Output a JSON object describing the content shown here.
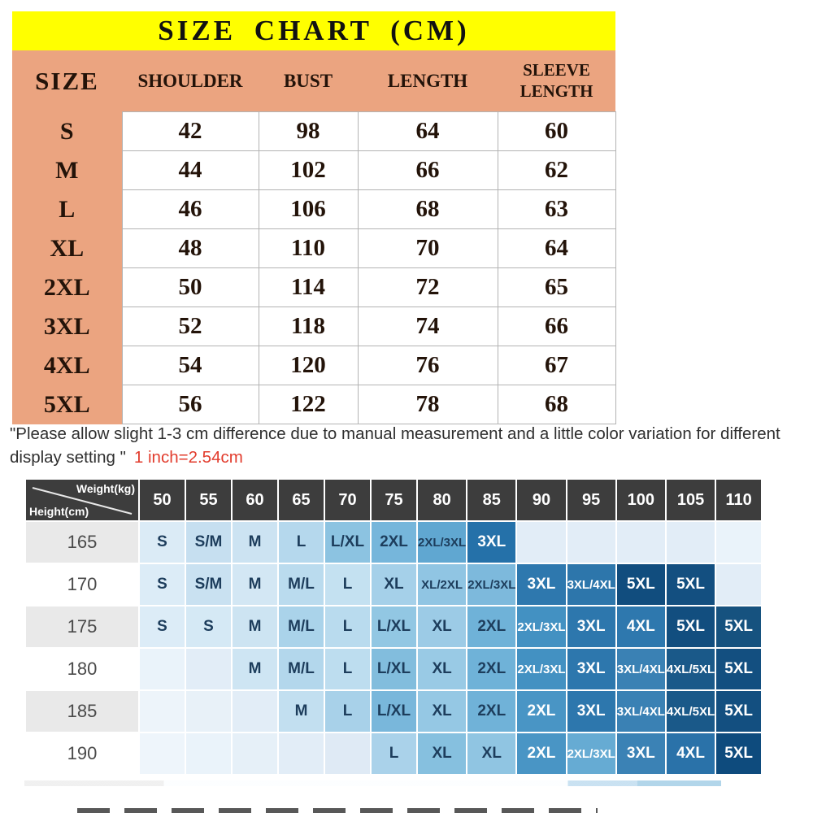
{
  "colors": {
    "title_bg": "#ffff00",
    "peach": "#eba480",
    "table_text": "#231309",
    "cell_border": "#b3b3b3",
    "note_text": "#2f2f2f",
    "note_red": "#e23c2d",
    "matrix_header_bg": "#3d3d3d",
    "matrix_header_text": "#ffffff",
    "height_cell_alt": "#e9e9e9",
    "matrix_dark_text": "#1d3d5c",
    "matrix_white_text": "#ffffff"
  },
  "size_chart": {
    "title": "SIZE CHART (CM)",
    "columns": [
      "SIZE",
      "SHOULDER",
      "BUST",
      "LENGTH",
      "SLEEVE LENGTH"
    ],
    "rows": [
      [
        "S",
        "42",
        "98",
        "64",
        "60"
      ],
      [
        "M",
        "44",
        "102",
        "66",
        "62"
      ],
      [
        "L",
        "46",
        "106",
        "68",
        "63"
      ],
      [
        "XL",
        "48",
        "110",
        "70",
        "64"
      ],
      [
        "2XL",
        "50",
        "114",
        "72",
        "65"
      ],
      [
        "3XL",
        "52",
        "118",
        "74",
        "66"
      ],
      [
        "4XL",
        "54",
        "120",
        "76",
        "67"
      ],
      [
        "5XL",
        "56",
        "122",
        "78",
        "68"
      ]
    ]
  },
  "note": {
    "quote": "\"Please allow slight 1-3 cm difference due to manual measurement and a little color variation for different display setting \"",
    "conversion": "1 inch=2.54cm"
  },
  "matrix": {
    "corner_top": "Weight(kg)",
    "corner_bottom": "Height(cm)",
    "weights": [
      "50",
      "55",
      "60",
      "65",
      "70",
      "75",
      "80",
      "85",
      "90",
      "95",
      "100",
      "105",
      "110"
    ],
    "rows": [
      {
        "height": "165",
        "alt": true,
        "cells": [
          {
            "t": "S",
            "bg": "#dbebf6",
            "fg": "#1d3d5c"
          },
          {
            "t": "S/M",
            "bg": "#c6dff0",
            "fg": "#1d3d5c"
          },
          {
            "t": "M",
            "bg": "#cce3f2",
            "fg": "#1d3d5c"
          },
          {
            "t": "L",
            "bg": "#b5d8ed",
            "fg": "#1d3d5c"
          },
          {
            "t": "L/XL",
            "bg": "#8cc3e1",
            "fg": "#1d3d5c"
          },
          {
            "t": "2XL",
            "bg": "#76b6db",
            "fg": "#1d3d5c"
          },
          {
            "t": "2XL/3XL",
            "bg": "#60a7d1",
            "fg": "#1d3d5c"
          },
          {
            "t": "3XL",
            "bg": "#2571a9",
            "fg": "#ffffff"
          },
          {
            "t": "",
            "bg": "#e2edf7",
            "fg": "#1d3d5c"
          },
          {
            "t": "",
            "bg": "#e2edf7",
            "fg": "#1d3d5c"
          },
          {
            "t": "",
            "bg": "#e2edf7",
            "fg": "#1d3d5c"
          },
          {
            "t": "",
            "bg": "#e2edf7",
            "fg": "#1d3d5c"
          },
          {
            "t": "",
            "bg": "#eaf3fa",
            "fg": "#1d3d5c"
          }
        ]
      },
      {
        "height": "170",
        "alt": false,
        "cells": [
          {
            "t": "S",
            "bg": "#dcecf7",
            "fg": "#1d3d5c"
          },
          {
            "t": "S/M",
            "bg": "#c9e1f1",
            "fg": "#1d3d5c"
          },
          {
            "t": "M",
            "bg": "#d3e7f4",
            "fg": "#1d3d5c"
          },
          {
            "t": "M/L",
            "bg": "#badbee",
            "fg": "#1d3d5c"
          },
          {
            "t": "L",
            "bg": "#c4e1f1",
            "fg": "#1d3d5c"
          },
          {
            "t": "XL",
            "bg": "#a5d0e9",
            "fg": "#1d3d5c"
          },
          {
            "t": "XL/2XL",
            "bg": "#90c5e3",
            "fg": "#1d3d5c"
          },
          {
            "t": "2XL/3XL",
            "bg": "#7db9dc",
            "fg": "#1d3d5c"
          },
          {
            "t": "3XL",
            "bg": "#2e78ae",
            "fg": "#ffffff"
          },
          {
            "t": "3XL/4XL",
            "bg": "#2d76ab",
            "fg": "#ffffff"
          },
          {
            "t": "5XL",
            "bg": "#114d7e",
            "fg": "#ffffff"
          },
          {
            "t": "5XL",
            "bg": "#134f80",
            "fg": "#ffffff"
          },
          {
            "t": "",
            "bg": "#e2edf7",
            "fg": "#1d3d5c"
          }
        ]
      },
      {
        "height": "175",
        "alt": true,
        "cells": [
          {
            "t": "S",
            "bg": "#dcecf7",
            "fg": "#1d3d5c"
          },
          {
            "t": "S",
            "bg": "#d5e9f5",
            "fg": "#1d3d5c"
          },
          {
            "t": "M",
            "bg": "#cde4f2",
            "fg": "#1d3d5c"
          },
          {
            "t": "M/L",
            "bg": "#aad3ea",
            "fg": "#1d3d5c"
          },
          {
            "t": "L",
            "bg": "#b9dbee",
            "fg": "#1d3d5c"
          },
          {
            "t": "L/XL",
            "bg": "#92c7e3",
            "fg": "#1d3d5c"
          },
          {
            "t": "XL",
            "bg": "#9ccbe6",
            "fg": "#1d3d5c"
          },
          {
            "t": "2XL",
            "bg": "#6fb2d8",
            "fg": "#1d3d5c"
          },
          {
            "t": "2XL/3XL",
            "bg": "#4391c2",
            "fg": "#ffffff"
          },
          {
            "t": "3XL",
            "bg": "#2d77ad",
            "fg": "#ffffff"
          },
          {
            "t": "4XL",
            "bg": "#2e78ae",
            "fg": "#ffffff"
          },
          {
            "t": "5XL",
            "bg": "#124e7f",
            "fg": "#ffffff"
          },
          {
            "t": "5XL",
            "bg": "#16527f",
            "fg": "#ffffff"
          }
        ]
      },
      {
        "height": "180",
        "alt": false,
        "cells": [
          {
            "t": "",
            "bg": "#eaf3fa",
            "fg": "#1d3d5c"
          },
          {
            "t": "",
            "bg": "#e2edf7",
            "fg": "#1d3d5c"
          },
          {
            "t": "M",
            "bg": "#cee5f3",
            "fg": "#1d3d5c"
          },
          {
            "t": "M/L",
            "bg": "#b3d7ec",
            "fg": "#1d3d5c"
          },
          {
            "t": "L",
            "bg": "#bdddef",
            "fg": "#1d3d5c"
          },
          {
            "t": "L/XL",
            "bg": "#82bddd",
            "fg": "#1d3d5c"
          },
          {
            "t": "XL",
            "bg": "#99cae5",
            "fg": "#1d3d5c"
          },
          {
            "t": "2XL",
            "bg": "#6fb2d8",
            "fg": "#1d3d5c"
          },
          {
            "t": "2XL/3XL",
            "bg": "#4391c2",
            "fg": "#ffffff"
          },
          {
            "t": "3XL",
            "bg": "#2d77ad",
            "fg": "#ffffff"
          },
          {
            "t": "3XL/4XL",
            "bg": "#3a81b4",
            "fg": "#ffffff"
          },
          {
            "t": "4XL/5XL",
            "bg": "#1a5989",
            "fg": "#ffffff"
          },
          {
            "t": "5XL",
            "bg": "#134f80",
            "fg": "#ffffff"
          }
        ]
      },
      {
        "height": "185",
        "alt": true,
        "cells": [
          {
            "t": "",
            "bg": "#edf4fa",
            "fg": "#1d3d5c"
          },
          {
            "t": "",
            "bg": "#e8f1f8",
            "fg": "#1d3d5c"
          },
          {
            "t": "",
            "bg": "#e2edf7",
            "fg": "#1d3d5c"
          },
          {
            "t": "M",
            "bg": "#c2dff0",
            "fg": "#1d3d5c"
          },
          {
            "t": "L",
            "bg": "#a8d1e9",
            "fg": "#1d3d5c"
          },
          {
            "t": "L/XL",
            "bg": "#79b7db",
            "fg": "#1d3d5c"
          },
          {
            "t": "XL",
            "bg": "#95c8e4",
            "fg": "#1d3d5c"
          },
          {
            "t": "2XL",
            "bg": "#70b2d8",
            "fg": "#1d3d5c"
          },
          {
            "t": "2XL",
            "bg": "#4995c5",
            "fg": "#ffffff"
          },
          {
            "t": "3XL",
            "bg": "#2d77ad",
            "fg": "#ffffff"
          },
          {
            "t": "3XL/4XL",
            "bg": "#3a81b4",
            "fg": "#ffffff"
          },
          {
            "t": "4XL/5XL",
            "bg": "#1a5989",
            "fg": "#ffffff"
          },
          {
            "t": "5XL",
            "bg": "#134f80",
            "fg": "#ffffff"
          }
        ]
      },
      {
        "height": "190",
        "alt": false,
        "cells": [
          {
            "t": "",
            "bg": "#eef5fb",
            "fg": "#1d3d5c"
          },
          {
            "t": "",
            "bg": "#eaf3fa",
            "fg": "#1d3d5c"
          },
          {
            "t": "",
            "bg": "#e6f0f8",
            "fg": "#1d3d5c"
          },
          {
            "t": "",
            "bg": "#e2edf7",
            "fg": "#1d3d5c"
          },
          {
            "t": "",
            "bg": "#dfeaf5",
            "fg": "#1d3d5c"
          },
          {
            "t": "L",
            "bg": "#aad2ea",
            "fg": "#1d3d5c"
          },
          {
            "t": "XL",
            "bg": "#86c0df",
            "fg": "#1d3d5c"
          },
          {
            "t": "XL",
            "bg": "#90c5e2",
            "fg": "#1d3d5c"
          },
          {
            "t": "2XL",
            "bg": "#4995c5",
            "fg": "#ffffff"
          },
          {
            "t": "2XL/3XL",
            "bg": "#66abd3",
            "fg": "#ffffff"
          },
          {
            "t": "3XL",
            "bg": "#3b82b5",
            "fg": "#ffffff"
          },
          {
            "t": "4XL",
            "bg": "#2a72a9",
            "fg": "#ffffff"
          },
          {
            "t": "5XL",
            "bg": "#0e4b7d",
            "fg": "#ffffff"
          }
        ]
      }
    ]
  }
}
